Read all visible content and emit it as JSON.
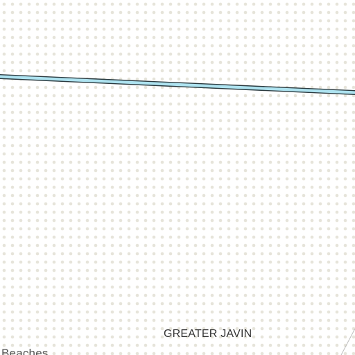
{
  "map": {
    "background_color": "#ffffff",
    "dot_color": "#e6e4da",
    "road": {
      "fill_color": "#aee3f0",
      "casing_color": "#2b3a3f"
    },
    "edge_line_color": "#bdbdbd",
    "labels": {
      "greater_javin": "GREATER JAVIN",
      "beaches": "Beaches"
    }
  }
}
